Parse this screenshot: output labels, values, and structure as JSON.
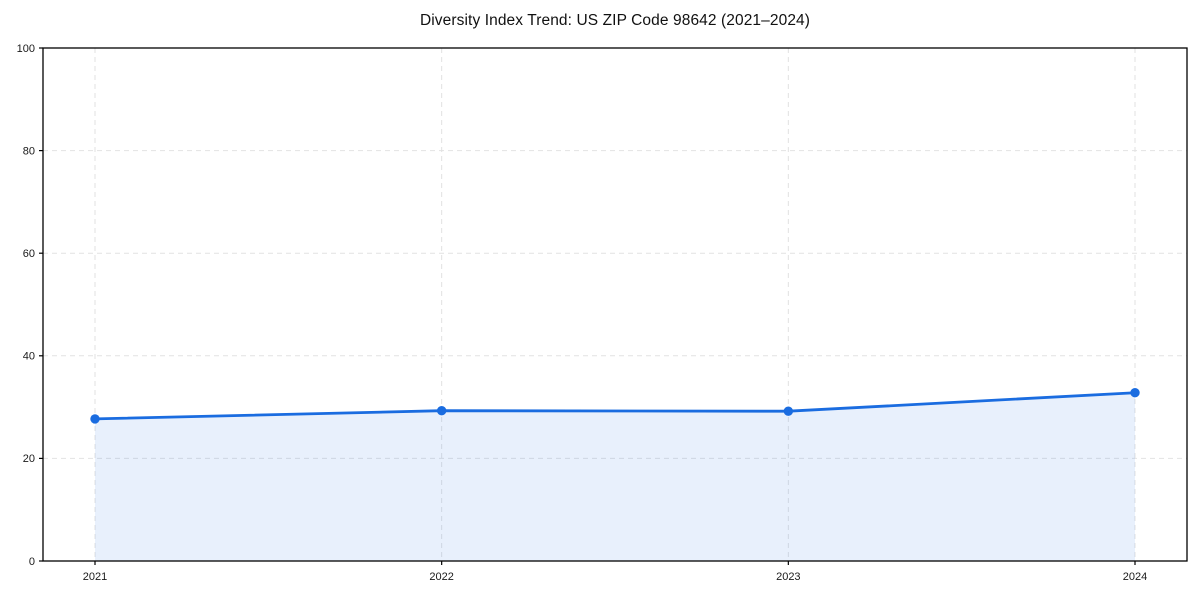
{
  "figure": {
    "background": "#ffffff"
  },
  "chart_data": {
    "type": "area",
    "title": "Diversity Index Trend: US ZIP Code 98642 (2021–2024)",
    "x": [
      "2021",
      "2022",
      "2023",
      "2024"
    ],
    "values": [
      27.7,
      29.3,
      29.2,
      32.8
    ],
    "xlabel": "",
    "ylabel": "",
    "ylim": [
      0,
      100
    ],
    "yticks": [
      0,
      20,
      40,
      60,
      80,
      100
    ],
    "xtick_labels": [
      "2021",
      "2022",
      "2023",
      "2024"
    ],
    "grid": "on",
    "grid_style": "dashed",
    "legend": "none",
    "colors": {
      "line": "#1a6ce0",
      "marker": "#1a6ce0",
      "fill": "#1a6ce0",
      "fill_opacity": 0.1,
      "grid": "#e2e2e2",
      "axis": "#000000",
      "tick_label": "#1a1a1a"
    }
  }
}
